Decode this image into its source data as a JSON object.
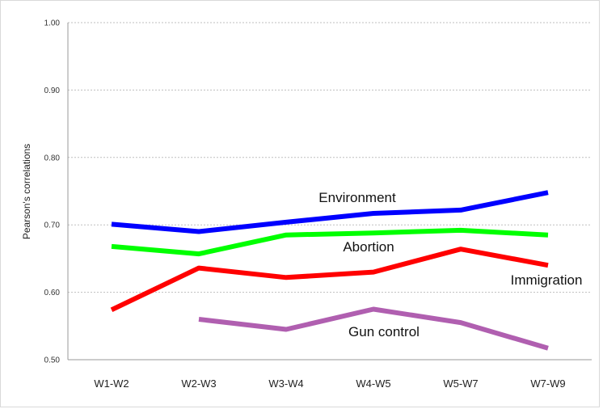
{
  "chart_data": {
    "type": "line",
    "title": "",
    "xlabel": "",
    "ylabel": "Pearson's correlations",
    "categories": [
      "W1-W2",
      "W2-W3",
      "W3-W4",
      "W4-W5",
      "W5-W7",
      "W7-W9"
    ],
    "ylim": [
      0.5,
      1.0
    ],
    "yticks": [
      "0.50",
      "0.60",
      "0.70",
      "0.80",
      "0.90",
      "1.00"
    ],
    "grid": true,
    "legend": "none (series labeled inline)",
    "series": [
      {
        "name": "Environment",
        "color": "#0000ff",
        "values": [
          0.701,
          0.69,
          0.704,
          0.717,
          0.722,
          0.748
        ]
      },
      {
        "name": "Abortion",
        "color": "#00ff00",
        "values": [
          0.668,
          0.657,
          0.685,
          0.688,
          0.692,
          0.685
        ]
      },
      {
        "name": "Immigration",
        "color": "#ff0000",
        "values": [
          0.574,
          0.636,
          0.622,
          0.63,
          0.664,
          0.64
        ]
      },
      {
        "name": "Gun control",
        "color": "#b05fb0",
        "values": [
          null,
          0.56,
          0.545,
          0.575,
          0.555,
          0.517
        ]
      }
    ]
  }
}
